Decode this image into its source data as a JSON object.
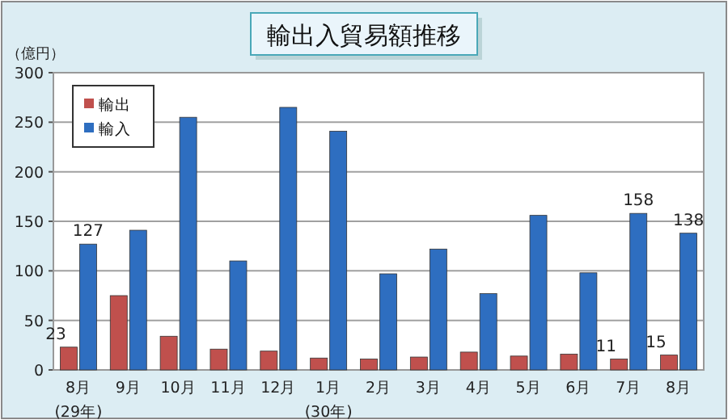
{
  "chart_data": {
    "type": "bar",
    "title": "輸出入貿易額推移",
    "ylabel": "（億円）",
    "categories": [
      "8月\n(29年)",
      "9月",
      "10月",
      "11月",
      "12月",
      "1月\n(30年)",
      "2月",
      "3月",
      "4月",
      "5月",
      "6月",
      "7月",
      "8月"
    ],
    "series": [
      {
        "name": "輸出",
        "color": "#c0504d",
        "values": [
          23,
          75,
          34,
          21,
          19,
          12,
          11,
          13,
          18,
          14,
          16,
          11,
          15
        ],
        "value_labels": [
          "23",
          null,
          null,
          null,
          null,
          null,
          null,
          null,
          null,
          null,
          null,
          "11",
          "15"
        ]
      },
      {
        "name": "輸入",
        "color": "#2e6ec0",
        "values": [
          127,
          141,
          255,
          110,
          265,
          241,
          97,
          122,
          77,
          156,
          98,
          158,
          138
        ],
        "value_labels": [
          "127",
          null,
          null,
          null,
          null,
          null,
          null,
          null,
          null,
          null,
          null,
          "158",
          "138"
        ]
      }
    ],
    "ylim": [
      0,
      300
    ],
    "yticks": [
      0,
      50,
      100,
      150,
      200,
      250,
      300
    ],
    "grid": "y",
    "legend": "top left"
  }
}
